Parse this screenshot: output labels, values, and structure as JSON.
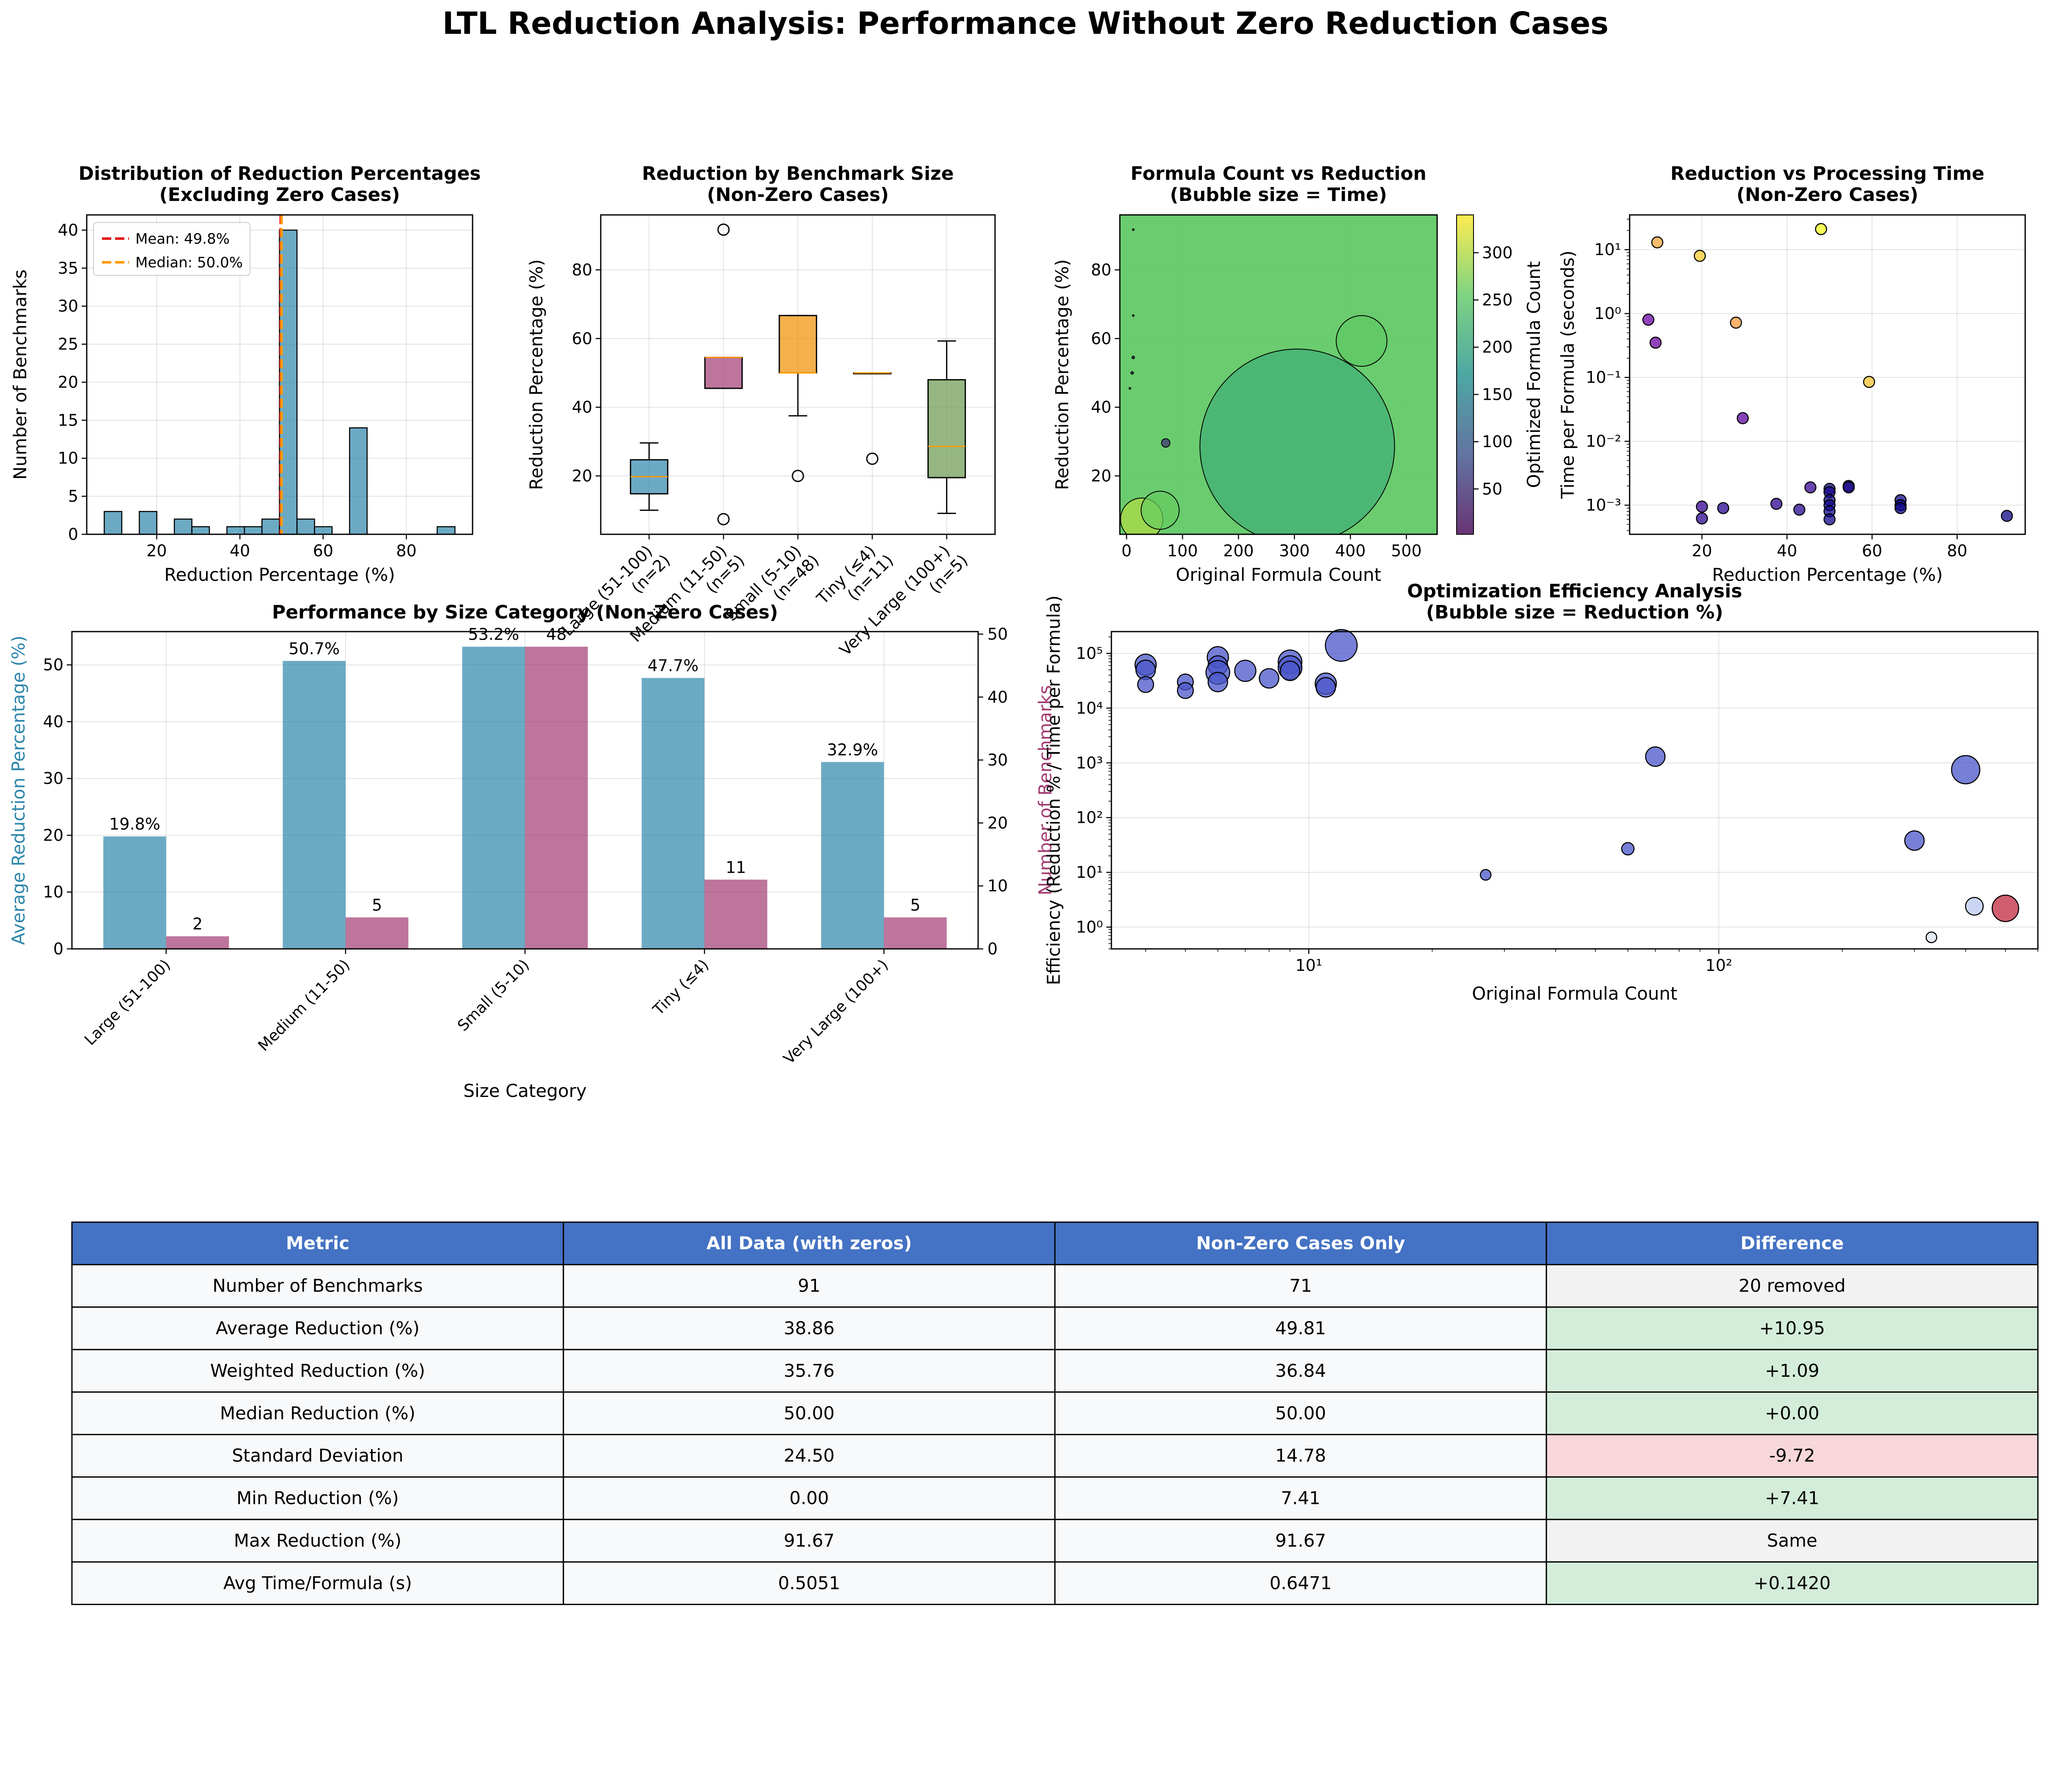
{
  "figure": {
    "title": "LTL Reduction Analysis: Performance Without Zero Reduction Cases"
  },
  "colors": {
    "blue": "#2E86AB",
    "magenta": "#A23B72",
    "orange": "#F18F01",
    "mean_line": "#e31a1c",
    "median_line": "#ff9900",
    "table_header": "#4472C4",
    "green_cell": "#d4edda",
    "red_cell": "#f8d7da",
    "gray_cell": "#f2f2f2",
    "row_cell": "#f8f9fa",
    "bubble": "#4a56c9"
  },
  "chart_data": [
    {
      "id": "hist",
      "type": "bar",
      "title": "Distribution of Reduction Percentages\n(Excluding Zero Cases)",
      "xlabel": "Reduction Percentage (%)",
      "ylabel": "Number of Benchmarks",
      "xlim": [
        3.2,
        95.9
      ],
      "ylim": [
        0,
        42
      ],
      "xticks": [
        20,
        40,
        60,
        80
      ],
      "yticks": [
        0,
        5,
        10,
        15,
        20,
        25,
        30,
        35,
        40
      ],
      "bin_edges": [
        7.41,
        11.62,
        15.83,
        20.04,
        24.25,
        28.46,
        32.67,
        36.88,
        41.09,
        45.3,
        49.51,
        53.72,
        57.93,
        62.14,
        66.35,
        70.56,
        74.77,
        78.98,
        83.19,
        87.4,
        91.67
      ],
      "counts": [
        3,
        0,
        3,
        0,
        2,
        1,
        0,
        1,
        1,
        2,
        40,
        2,
        1,
        0,
        14,
        0,
        0,
        0,
        0,
        1
      ],
      "mean": 49.8,
      "median": 50.0,
      "legend": [
        "Mean: 49.8%",
        "Median: 50.0%"
      ],
      "legend_position": "top-left",
      "grid": true
    },
    {
      "id": "box",
      "type": "box",
      "title": "Reduction by Benchmark Size\n(Non-Zero Cases)",
      "ylabel": "Reduction Percentage (%)",
      "ylim": [
        3,
        96
      ],
      "yticks": [
        20,
        40,
        60,
        80
      ],
      "categories": [
        "Large (51-100)\n(n=2)",
        "Medium (11-50)\n(n=5)",
        "Small (5-10)\n(n=48)",
        "Tiny (≤4)\n(n=11)",
        "Very Large (100+)\n(n=5)"
      ],
      "boxes": [
        {
          "q1": 14.8,
          "median": 19.8,
          "q3": 24.7,
          "whislo": 10.0,
          "whishi": 29.6,
          "fliers": [],
          "color": "#2E86AB"
        },
        {
          "q1": 45.5,
          "median": 54.5,
          "q3": 54.5,
          "whislo": 45.5,
          "whishi": 54.5,
          "fliers": [
            7.4,
            91.7
          ],
          "color": "#A23B72"
        },
        {
          "q1": 50.0,
          "median": 50.0,
          "q3": 66.7,
          "whislo": 37.5,
          "whishi": 66.7,
          "fliers": [
            20.0
          ],
          "color": "#F18F01"
        },
        {
          "q1": 50.0,
          "median": 50.0,
          "q3": 50.0,
          "whislo": 50.0,
          "whishi": 50.0,
          "fliers": [
            25.0
          ],
          "color": "#C73E1D"
        },
        {
          "q1": 19.5,
          "median": 28.6,
          "q3": 48.0,
          "whislo": 9.1,
          "whishi": 59.3,
          "fliers": [],
          "color": "#6A994E"
        }
      ],
      "grid": true
    },
    {
      "id": "bubble",
      "type": "scatter",
      "title": "Formula Count vs Reduction\n(Bubble size = Time)",
      "xlabel": "Original Formula Count",
      "ylabel": "Reduction Percentage (%)",
      "xlim": [
        -12,
        555
      ],
      "ylim": [
        3,
        96
      ],
      "xticks": [
        0,
        100,
        200,
        300,
        400,
        500
      ],
      "yticks": [
        20,
        40,
        60,
        80
      ],
      "colorbar_label": "Optimized Formula Count",
      "colorbar_range": [
        2,
        340
      ],
      "colorbar_ticks": [
        50,
        100,
        150,
        200,
        250,
        300
      ],
      "points": [
        {
          "x": 27,
          "y": 7.4,
          "r": 50,
          "c": 300
        },
        {
          "x": 60,
          "y": 10,
          "r": 45,
          "c": 260
        },
        {
          "x": 305,
          "y": 28.6,
          "r": 230,
          "c": 215
        },
        {
          "x": 420,
          "y": 59.3,
          "r": 60,
          "c": 255
        },
        {
          "x": 70,
          "y": 29.6,
          "r": 10,
          "c": 50
        },
        {
          "x": 320,
          "y": 20,
          "r": 1050,
          "c": 250
        },
        {
          "x": 400,
          "y": 45.4,
          "r": 760,
          "c": 255
        },
        {
          "x": 10,
          "y": 50,
          "r": 3,
          "c": 5
        },
        {
          "x": 12,
          "y": 54.5,
          "r": 3,
          "c": 5
        },
        {
          "x": 12,
          "y": 66.7,
          "r": 2,
          "c": 4
        },
        {
          "x": 12,
          "y": 91.7,
          "r": 2,
          "c": 1
        },
        {
          "x": 6,
          "y": 45.5,
          "r": 2,
          "c": 3
        }
      ],
      "grid": true
    },
    {
      "id": "timescatter",
      "type": "scatter",
      "title": "Reduction vs Processing Time\n(Non-Zero Cases)",
      "xlabel": "Reduction Percentage (%)",
      "ylabel": "Time per Formula (seconds)",
      "xlim": [
        3,
        96
      ],
      "ylog": true,
      "ylim": [
        0.00035,
        35
      ],
      "xticks": [
        20,
        40,
        60,
        80
      ],
      "yticks": [
        0.001,
        0.01,
        0.1,
        1,
        10
      ],
      "ytick_labels": [
        "10⁻³",
        "10⁻²",
        "10⁻¹",
        "10⁰",
        "10¹"
      ],
      "points": [
        {
          "x": 48,
          "y": 21,
          "c": 330
        },
        {
          "x": 9.5,
          "y": 13,
          "c": 260
        },
        {
          "x": 19.5,
          "y": 8.0,
          "c": 290
        },
        {
          "x": 28,
          "y": 0.72,
          "c": 250
        },
        {
          "x": 7.4,
          "y": 0.8,
          "c": 70
        },
        {
          "x": 9.1,
          "y": 0.35,
          "c": 70
        },
        {
          "x": 59.3,
          "y": 0.085,
          "c": 285
        },
        {
          "x": 29.6,
          "y": 0.023,
          "c": 60
        },
        {
          "x": 20,
          "y": 0.00095,
          "c": 30
        },
        {
          "x": 20,
          "y": 0.00062,
          "c": 25
        },
        {
          "x": 25,
          "y": 0.0009,
          "c": 20
        },
        {
          "x": 37.5,
          "y": 0.00105,
          "c": 25
        },
        {
          "x": 42.9,
          "y": 0.00085,
          "c": 20
        },
        {
          "x": 45.5,
          "y": 0.0019,
          "c": 30
        },
        {
          "x": 50,
          "y": 0.0018,
          "c": 5
        },
        {
          "x": 50,
          "y": 0.0016,
          "c": 8
        },
        {
          "x": 50,
          "y": 0.0012,
          "c": 4
        },
        {
          "x": 50,
          "y": 0.001,
          "c": 6
        },
        {
          "x": 50,
          "y": 0.0008,
          "c": 5
        },
        {
          "x": 50,
          "y": 0.0006,
          "c": 3
        },
        {
          "x": 54.5,
          "y": 0.002,
          "c": 10
        },
        {
          "x": 54.5,
          "y": 0.0019,
          "c": 8
        },
        {
          "x": 66.7,
          "y": 0.0012,
          "c": 4
        },
        {
          "x": 66.7,
          "y": 0.001,
          "c": 3
        },
        {
          "x": 66.7,
          "y": 0.0009,
          "c": 2
        },
        {
          "x": 91.7,
          "y": 0.00068,
          "c": 1
        }
      ],
      "grid": true
    },
    {
      "id": "perf",
      "type": "bar",
      "title": "Performance by Size Category (Non-Zero Cases)",
      "xlabel": "Size Category",
      "ylabel": "Average Reduction Percentage (%)",
      "ylabel_right": "Number of Benchmarks",
      "categories": [
        "Large (51-100)",
        "Medium (11-50)",
        "Small (5-10)",
        "Tiny (≤4)",
        "Very Large (100+)"
      ],
      "series": [
        {
          "name": "Average Reduction Percentage (%)",
          "values": [
            19.8,
            50.7,
            53.2,
            47.7,
            32.9
          ],
          "labels": [
            "19.8%",
            "50.7%",
            "53.2%",
            "47.7%",
            "32.9%"
          ]
        },
        {
          "name": "Number of Benchmarks",
          "values": [
            2,
            5,
            48,
            11,
            5
          ],
          "labels": [
            "2",
            "5",
            "48",
            "11",
            "5"
          ]
        }
      ],
      "ylim": [
        0,
        55.86
      ],
      "ylim_right": [
        0,
        50.4
      ],
      "yticks": [
        0,
        10,
        20,
        30,
        40,
        50
      ],
      "yticks_right": [
        0,
        10,
        20,
        30,
        40,
        50
      ],
      "grid": true
    },
    {
      "id": "eff",
      "type": "scatter",
      "title": "Optimization Efficiency Analysis\n(Bubble size = Reduction %)",
      "xlabel": "Original Formula Count",
      "ylabel": "Efficiency (Reduction % / Time per Formula)",
      "xlog": true,
      "ylog": true,
      "xlim": [
        3.3,
        600
      ],
      "ylim": [
        0.4,
        250000
      ],
      "xticks": [
        10,
        100
      ],
      "xtick_labels": [
        "10¹",
        "10²"
      ],
      "yticks": [
        1,
        10,
        100,
        1000,
        10000,
        100000
      ],
      "ytick_labels": [
        "10⁰",
        "10¹",
        "10²",
        "10³",
        "10⁴",
        "10⁵"
      ],
      "points": [
        {
          "x": 12,
          "y": 140000,
          "s": 90
        },
        {
          "x": 4,
          "y": 62000,
          "s": 60
        },
        {
          "x": 4,
          "y": 50000,
          "s": 55
        },
        {
          "x": 4,
          "y": 27000,
          "s": 45
        },
        {
          "x": 5,
          "y": 30000,
          "s": 45
        },
        {
          "x": 5,
          "y": 21000,
          "s": 45
        },
        {
          "x": 6,
          "y": 85000,
          "s": 60
        },
        {
          "x": 6,
          "y": 60000,
          "s": 55
        },
        {
          "x": 6,
          "y": 45000,
          "s": 67
        },
        {
          "x": 6,
          "y": 30000,
          "s": 55
        },
        {
          "x": 7,
          "y": 48000,
          "s": 60
        },
        {
          "x": 8,
          "y": 35000,
          "s": 55
        },
        {
          "x": 9,
          "y": 70000,
          "s": 67
        },
        {
          "x": 9,
          "y": 55000,
          "s": 67
        },
        {
          "x": 9,
          "y": 48000,
          "s": 55
        },
        {
          "x": 11,
          "y": 28000,
          "s": 60
        },
        {
          "x": 11,
          "y": 24000,
          "s": 55
        },
        {
          "x": 27,
          "y": 9,
          "s": 30
        },
        {
          "x": 60,
          "y": 27,
          "s": 35
        },
        {
          "x": 70,
          "y": 1300,
          "s": 55
        },
        {
          "x": 300,
          "y": 38,
          "s": 55
        },
        {
          "x": 330,
          "y": 0.65,
          "s": 30
        },
        {
          "x": 400,
          "y": 750,
          "s": 80
        },
        {
          "x": 420,
          "y": 2.4,
          "s": 50
        },
        {
          "x": 500,
          "y": 2.2,
          "s": 75
        }
      ],
      "grid": true
    }
  ],
  "table": {
    "headers": [
      "Metric",
      "All Data (with zeros)",
      "Non-Zero Cases Only",
      "Difference"
    ],
    "rows": [
      {
        "cells": [
          "Number of Benchmarks",
          "91",
          "71",
          "20 removed"
        ],
        "diff_color": "#f2f2f2"
      },
      {
        "cells": [
          "Average Reduction (%)",
          "38.86",
          "49.81",
          "+10.95"
        ],
        "diff_color": "#d4edda"
      },
      {
        "cells": [
          "Weighted Reduction (%)",
          "35.76",
          "36.84",
          "+1.09"
        ],
        "diff_color": "#d4edda"
      },
      {
        "cells": [
          "Median Reduction (%)",
          "50.00",
          "50.00",
          "+0.00"
        ],
        "diff_color": "#d4edda"
      },
      {
        "cells": [
          "Standard Deviation",
          "24.50",
          "14.78",
          "-9.72"
        ],
        "diff_color": "#f8d7da"
      },
      {
        "cells": [
          "Min Reduction (%)",
          "0.00",
          "7.41",
          "+7.41"
        ],
        "diff_color": "#d4edda"
      },
      {
        "cells": [
          "Max Reduction (%)",
          "91.67",
          "91.67",
          "Same"
        ],
        "diff_color": "#f2f2f2"
      },
      {
        "cells": [
          "Avg Time/Formula (s)",
          "0.5051",
          "0.6471",
          "+0.1420"
        ],
        "diff_color": "#d4edda"
      }
    ]
  }
}
